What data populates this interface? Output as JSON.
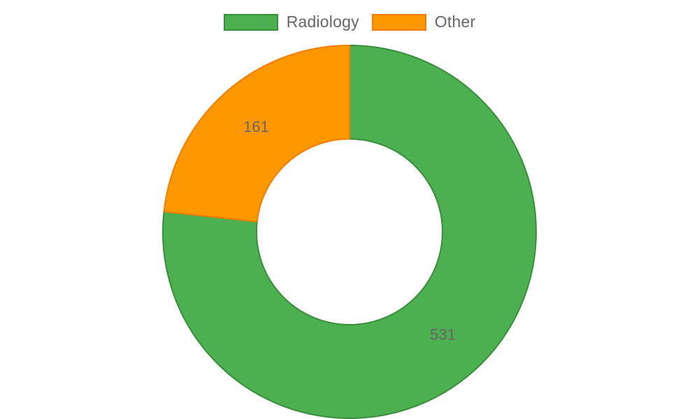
{
  "chart_data": {
    "type": "pie",
    "variant": "doughnut",
    "categories": [
      "Radiology",
      "Other"
    ],
    "values": [
      531,
      161
    ],
    "colors": [
      "#4caf50",
      "#ff9800"
    ],
    "border_colors": [
      "#388e3c",
      "#f57c00"
    ],
    "data_labels": [
      "531",
      "161"
    ],
    "legend": "top-center",
    "title": "",
    "xlabel": "",
    "ylabel": ""
  }
}
